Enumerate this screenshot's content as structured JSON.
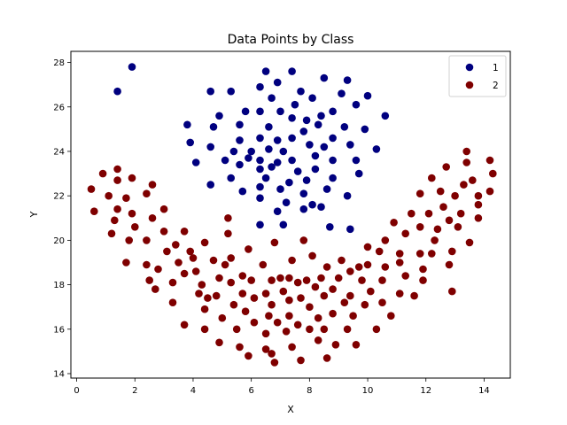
{
  "chart_data": {
    "type": "scatter",
    "title": "Data Points by Class",
    "xlabel": "X",
    "ylabel": "Y",
    "xlim": [
      -0.2,
      14.9
    ],
    "ylim": [
      13.8,
      28.5
    ],
    "xticks": [
      0,
      2,
      4,
      6,
      8,
      10,
      12,
      14
    ],
    "yticks": [
      14,
      16,
      18,
      20,
      22,
      24,
      26,
      28
    ],
    "grid": false,
    "legend": "top-right",
    "series": [
      {
        "name": "1",
        "color": "#00007f",
        "points": [
          [
            1.9,
            27.8
          ],
          [
            1.4,
            26.7
          ],
          [
            4.6,
            26.7
          ],
          [
            5.3,
            26.7
          ],
          [
            6.5,
            27.6
          ],
          [
            7.4,
            27.6
          ],
          [
            8.5,
            27.3
          ],
          [
            9.3,
            27.2
          ],
          [
            10.0,
            26.5
          ],
          [
            9.1,
            26.6
          ],
          [
            6.9,
            27.1
          ],
          [
            6.3,
            26.9
          ],
          [
            7.7,
            26.7
          ],
          [
            6.7,
            26.4
          ],
          [
            8.1,
            26.4
          ],
          [
            7.5,
            26.1
          ],
          [
            8.4,
            25.6
          ],
          [
            9.6,
            26.1
          ],
          [
            10.6,
            25.6
          ],
          [
            4.9,
            25.6
          ],
          [
            4.7,
            25.1
          ],
          [
            5.8,
            25.8
          ],
          [
            6.3,
            25.8
          ],
          [
            7.0,
            25.8
          ],
          [
            7.4,
            25.5
          ],
          [
            7.9,
            25.4
          ],
          [
            8.3,
            25.2
          ],
          [
            8.8,
            25.8
          ],
          [
            5.6,
            25.2
          ],
          [
            6.6,
            25.1
          ],
          [
            3.8,
            25.2
          ],
          [
            3.9,
            24.4
          ],
          [
            4.6,
            24.2
          ],
          [
            5.6,
            24.5
          ],
          [
            6.3,
            24.6
          ],
          [
            6.9,
            24.5
          ],
          [
            7.4,
            24.6
          ],
          [
            7.8,
            24.9
          ],
          [
            8.0,
            24.3
          ],
          [
            8.5,
            24.2
          ],
          [
            8.8,
            24.6
          ],
          [
            9.2,
            25.1
          ],
          [
            9.9,
            25.0
          ],
          [
            9.4,
            24.3
          ],
          [
            10.3,
            24.1
          ],
          [
            6.0,
            24.0
          ],
          [
            6.6,
            24.1
          ],
          [
            7.1,
            24.0
          ],
          [
            5.4,
            24.0
          ],
          [
            5.9,
            23.7
          ],
          [
            6.3,
            23.6
          ],
          [
            6.9,
            23.5
          ],
          [
            7.4,
            23.6
          ],
          [
            8.2,
            23.8
          ],
          [
            8.8,
            23.6
          ],
          [
            9.6,
            23.6
          ],
          [
            4.1,
            23.5
          ],
          [
            5.1,
            23.6
          ],
          [
            5.6,
            23.4
          ],
          [
            6.3,
            23.2
          ],
          [
            6.7,
            23.3
          ],
          [
            7.6,
            23.1
          ],
          [
            8.2,
            23.2
          ],
          [
            9.7,
            23.0
          ],
          [
            5.3,
            22.8
          ],
          [
            6.5,
            22.8
          ],
          [
            7.3,
            22.6
          ],
          [
            7.9,
            22.7
          ],
          [
            8.8,
            22.8
          ],
          [
            4.6,
            22.5
          ],
          [
            5.7,
            22.2
          ],
          [
            6.3,
            22.4
          ],
          [
            7.0,
            22.3
          ],
          [
            7.8,
            22.1
          ],
          [
            8.6,
            22.3
          ],
          [
            9.3,
            22.0
          ],
          [
            6.3,
            21.9
          ],
          [
            7.2,
            21.7
          ],
          [
            8.1,
            21.6
          ],
          [
            8.4,
            21.5
          ],
          [
            7.8,
            21.4
          ],
          [
            6.9,
            21.3
          ],
          [
            6.3,
            20.7
          ],
          [
            7.1,
            20.7
          ],
          [
            8.7,
            20.6
          ],
          [
            9.4,
            20.5
          ]
        ]
      },
      {
        "name": "2",
        "color": "#7f0000",
        "points": [
          [
            0.5,
            22.3
          ],
          [
            0.6,
            21.3
          ],
          [
            0.9,
            23.0
          ],
          [
            1.1,
            22.0
          ],
          [
            1.2,
            20.3
          ],
          [
            1.3,
            20.9
          ],
          [
            1.4,
            21.4
          ],
          [
            1.4,
            22.7
          ],
          [
            1.4,
            23.2
          ],
          [
            1.7,
            21.9
          ],
          [
            1.7,
            19.0
          ],
          [
            1.8,
            20.0
          ],
          [
            1.9,
            21.2
          ],
          [
            1.9,
            22.8
          ],
          [
            2.0,
            20.6
          ],
          [
            2.4,
            22.1
          ],
          [
            2.4,
            18.9
          ],
          [
            2.4,
            20.0
          ],
          [
            2.5,
            18.2
          ],
          [
            2.6,
            22.5
          ],
          [
            2.6,
            21.0
          ],
          [
            2.7,
            17.8
          ],
          [
            2.8,
            18.7
          ],
          [
            3.0,
            21.4
          ],
          [
            3.0,
            20.4
          ],
          [
            3.1,
            19.5
          ],
          [
            3.3,
            18.1
          ],
          [
            3.3,
            17.2
          ],
          [
            3.4,
            19.8
          ],
          [
            3.5,
            19.0
          ],
          [
            3.7,
            20.4
          ],
          [
            3.7,
            18.5
          ],
          [
            3.7,
            16.2
          ],
          [
            3.9,
            19.5
          ],
          [
            4.0,
            19.2
          ],
          [
            4.1,
            18.6
          ],
          [
            4.2,
            17.6
          ],
          [
            4.3,
            18.0
          ],
          [
            4.4,
            16.9
          ],
          [
            4.4,
            16.0
          ],
          [
            4.4,
            19.9
          ],
          [
            4.5,
            17.4
          ],
          [
            4.7,
            19.1
          ],
          [
            4.8,
            17.5
          ],
          [
            4.9,
            18.3
          ],
          [
            4.9,
            15.4
          ],
          [
            5.0,
            16.5
          ],
          [
            5.1,
            18.9
          ],
          [
            5.2,
            21.0
          ],
          [
            5.2,
            20.3
          ],
          [
            5.3,
            19.2
          ],
          [
            5.3,
            18.1
          ],
          [
            5.4,
            17.1
          ],
          [
            5.5,
            16.0
          ],
          [
            5.6,
            15.2
          ],
          [
            5.7,
            18.4
          ],
          [
            5.7,
            17.6
          ],
          [
            5.8,
            16.8
          ],
          [
            5.9,
            14.8
          ],
          [
            5.9,
            19.6
          ],
          [
            6.0,
            18.2
          ],
          [
            6.1,
            17.4
          ],
          [
            6.1,
            16.3
          ],
          [
            6.4,
            18.9
          ],
          [
            6.5,
            17.6
          ],
          [
            6.5,
            15.8
          ],
          [
            6.5,
            15.1
          ],
          [
            6.6,
            16.6
          ],
          [
            6.7,
            18.2
          ],
          [
            6.7,
            17.1
          ],
          [
            6.7,
            14.9
          ],
          [
            6.8,
            19.9
          ],
          [
            6.8,
            14.5
          ],
          [
            6.9,
            16.3
          ],
          [
            7.0,
            18.3
          ],
          [
            7.1,
            17.7
          ],
          [
            7.2,
            15.9
          ],
          [
            7.3,
            18.3
          ],
          [
            7.3,
            17.3
          ],
          [
            7.3,
            16.6
          ],
          [
            7.4,
            19.1
          ],
          [
            7.4,
            15.2
          ],
          [
            7.6,
            18.1
          ],
          [
            7.6,
            16.2
          ],
          [
            7.7,
            17.4
          ],
          [
            7.7,
            14.6
          ],
          [
            7.8,
            20.0
          ],
          [
            7.9,
            18.2
          ],
          [
            8.0,
            17.0
          ],
          [
            8.0,
            16.0
          ],
          [
            8.1,
            19.3
          ],
          [
            8.2,
            17.9
          ],
          [
            8.3,
            16.5
          ],
          [
            8.3,
            15.5
          ],
          [
            8.4,
            18.3
          ],
          [
            8.5,
            17.5
          ],
          [
            8.5,
            16.0
          ],
          [
            8.6,
            18.8
          ],
          [
            8.6,
            14.7
          ],
          [
            8.8,
            17.8
          ],
          [
            8.8,
            16.7
          ],
          [
            8.9,
            15.3
          ],
          [
            9.0,
            18.3
          ],
          [
            9.1,
            19.1
          ],
          [
            9.2,
            17.2
          ],
          [
            9.3,
            16.0
          ],
          [
            9.4,
            17.5
          ],
          [
            9.4,
            18.6
          ],
          [
            9.5,
            16.6
          ],
          [
            9.6,
            15.3
          ],
          [
            9.7,
            18.8
          ],
          [
            9.8,
            18.2
          ],
          [
            9.9,
            17.1
          ],
          [
            10.0,
            19.7
          ],
          [
            10.0,
            18.9
          ],
          [
            10.1,
            17.7
          ],
          [
            10.3,
            16.0
          ],
          [
            10.4,
            19.5
          ],
          [
            10.5,
            17.2
          ],
          [
            10.5,
            18.2
          ],
          [
            10.6,
            18.8
          ],
          [
            10.6,
            20.0
          ],
          [
            10.8,
            16.6
          ],
          [
            10.9,
            20.8
          ],
          [
            11.1,
            19.0
          ],
          [
            11.1,
            19.4
          ],
          [
            11.1,
            17.6
          ],
          [
            11.3,
            20.3
          ],
          [
            11.3,
            18.4
          ],
          [
            11.5,
            21.2
          ],
          [
            11.6,
            17.5
          ],
          [
            11.8,
            20.6
          ],
          [
            11.8,
            22.1
          ],
          [
            11.8,
            19.4
          ],
          [
            11.9,
            18.2
          ],
          [
            11.9,
            18.7
          ],
          [
            12.1,
            21.2
          ],
          [
            12.2,
            22.8
          ],
          [
            12.2,
            19.4
          ],
          [
            12.3,
            20.0
          ],
          [
            12.4,
            20.5
          ],
          [
            12.5,
            22.2
          ],
          [
            12.6,
            21.5
          ],
          [
            12.7,
            23.3
          ],
          [
            12.8,
            20.9
          ],
          [
            12.8,
            18.9
          ],
          [
            12.9,
            19.5
          ],
          [
            12.9,
            17.7
          ],
          [
            13.0,
            22.0
          ],
          [
            13.1,
            20.6
          ],
          [
            13.2,
            21.2
          ],
          [
            13.3,
            22.5
          ],
          [
            13.4,
            24.0
          ],
          [
            13.4,
            23.5
          ],
          [
            13.5,
            19.9
          ],
          [
            13.6,
            22.7
          ],
          [
            13.8,
            22.0
          ],
          [
            13.8,
            21.6
          ],
          [
            13.8,
            21.0
          ],
          [
            14.2,
            22.2
          ],
          [
            14.3,
            23.0
          ],
          [
            14.2,
            23.6
          ]
        ]
      }
    ]
  }
}
